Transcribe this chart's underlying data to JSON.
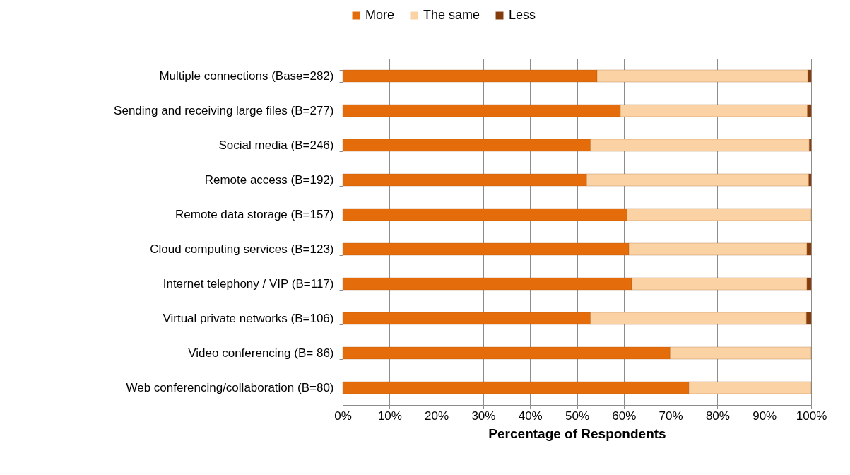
{
  "chart_data": {
    "type": "bar",
    "orientation": "horizontal",
    "stacked": true,
    "xlabel": "Percentage of Respondents",
    "categories": [
      "Multiple connections (Base=282)",
      "Sending and receiving large files (B=277)",
      "Social media (B=246)",
      "Remote access (B=192)",
      "Remote data storage (B=157)",
      "Cloud computing services (B=123)",
      "Internet telephony / VIP (B=117)",
      "Virtual private networks (B=106)",
      "Video conferencing (B= 86)",
      "Web conferencing/collaboration (B=80)"
    ],
    "series": [
      {
        "name": "More",
        "color": "#e46c0a",
        "values": [
          54.3,
          59.3,
          52.9,
          52.1,
          60.7,
          61.1,
          61.7,
          52.9,
          69.9,
          73.9
        ]
      },
      {
        "name": "The same",
        "color": "#fad2a4",
        "values": [
          45.0,
          39.9,
          46.7,
          47.4,
          39.3,
          38.0,
          37.4,
          46.1,
          30.1,
          26.1
        ]
      },
      {
        "name": "Less",
        "color": "#843c0c",
        "values": [
          0.7,
          0.8,
          0.4,
          0.5,
          null,
          0.9,
          0.9,
          1.0,
          null,
          null
        ]
      }
    ],
    "xlim": [
      0,
      100
    ],
    "xticks": [
      {
        "value": 0,
        "label": "0%"
      },
      {
        "value": 10,
        "label": "10%"
      },
      {
        "value": 20,
        "label": "20%"
      },
      {
        "value": 30,
        "label": "30%"
      },
      {
        "value": 40,
        "label": "40%"
      },
      {
        "value": 50,
        "label": "50%"
      },
      {
        "value": 60,
        "label": "60%"
      },
      {
        "value": 70,
        "label": "70%"
      },
      {
        "value": 80,
        "label": "80%"
      },
      {
        "value": 90,
        "label": "90%"
      },
      {
        "value": 100,
        "label": "100%"
      }
    ],
    "grid": "x",
    "legend": "top"
  }
}
